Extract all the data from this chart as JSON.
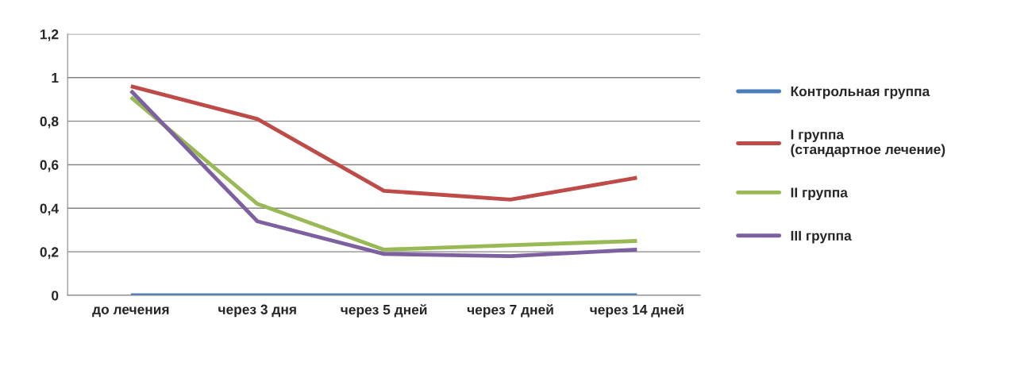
{
  "chart_data": {
    "type": "line",
    "categories": [
      "до лечения",
      "через 3 дня",
      "через 5 дней",
      "через 7 дней",
      "через 14 дней"
    ],
    "series": [
      {
        "name": "Контрольная группа",
        "color": "#4a7ebb",
        "values": [
          0,
          0,
          0,
          0,
          0
        ]
      },
      {
        "name": "I группа (стандартное лечение)",
        "color": "#be4b48",
        "values": [
          0.96,
          0.81,
          0.48,
          0.44,
          0.54
        ]
      },
      {
        "name": "II группа",
        "color": "#98b954",
        "values": [
          0.91,
          0.42,
          0.21,
          0.23,
          0.25
        ]
      },
      {
        "name": "III группа",
        "color": "#7d60a0",
        "values": [
          0.94,
          0.34,
          0.19,
          0.18,
          0.21
        ]
      }
    ],
    "ylim": [
      0,
      1.2
    ],
    "yticks": [
      0,
      {
        "value": 0.2,
        "label": "0,2"
      },
      {
        "value": 0.4,
        "label": "0,4"
      },
      {
        "value": 0.6,
        "label": "0,6"
      },
      {
        "value": 0.8,
        "label": "0,8"
      },
      1,
      {
        "value": 1.2,
        "label": "1,2"
      }
    ],
    "grid": "y",
    "legend": "right",
    "marker": "none",
    "line_style": "solid"
  }
}
